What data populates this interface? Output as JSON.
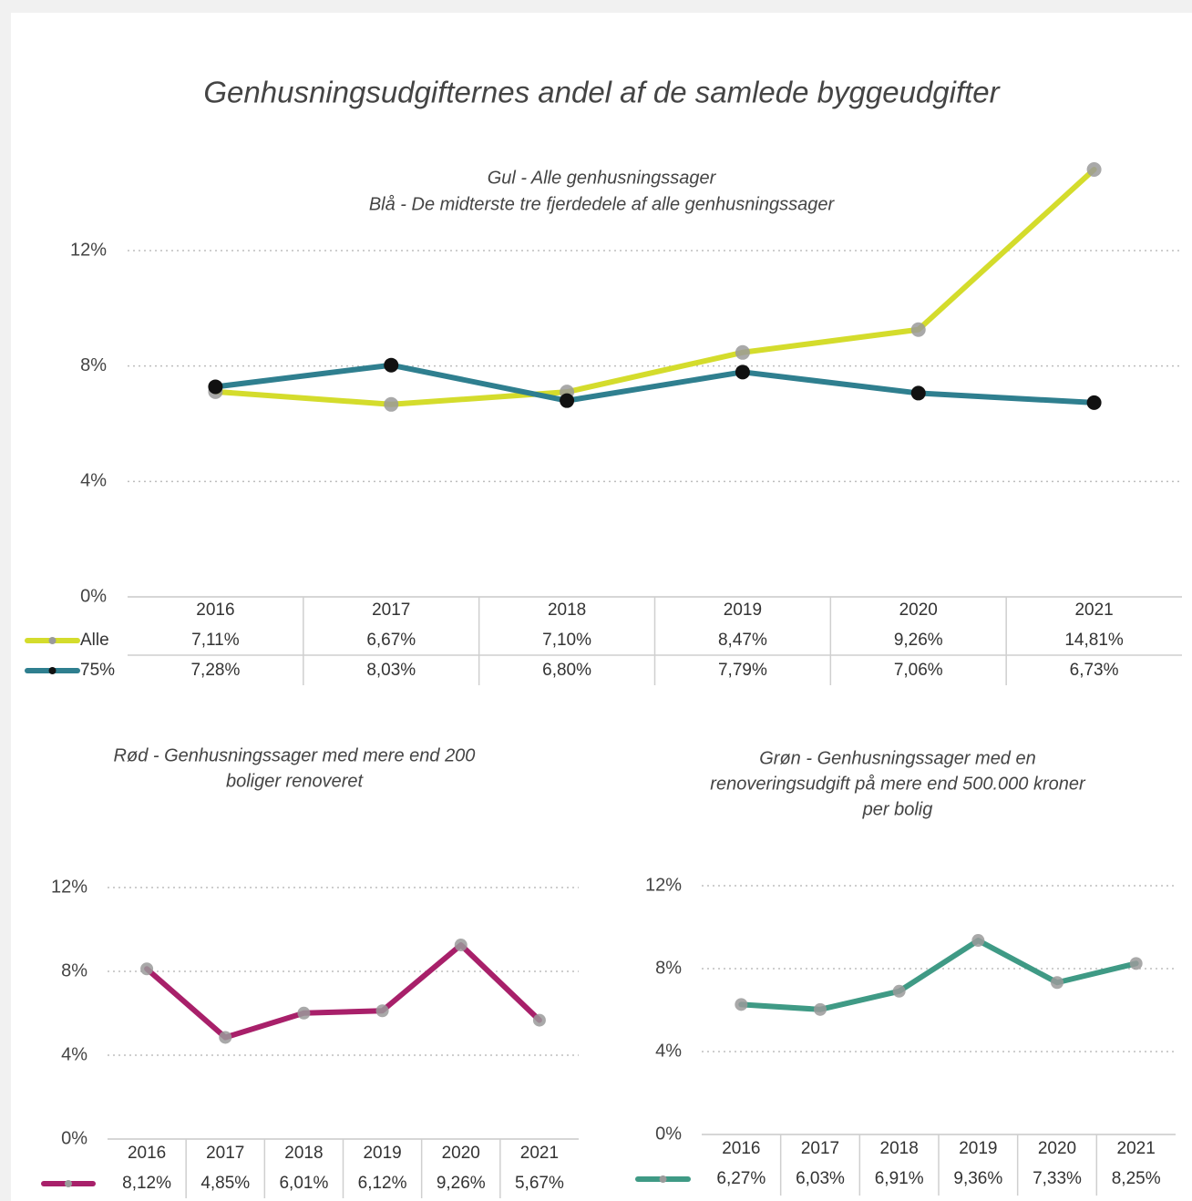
{
  "title": "Genhusningsudgifternes andel af de samlede byggeudgifter",
  "chart_data": [
    {
      "type": "line",
      "title": [
        "Gul - Alle genhusningssager",
        "Blå - De midterste tre fjerdedele af alle genhusningssager"
      ],
      "categories": [
        "2016",
        "2017",
        "2018",
        "2019",
        "2020",
        "2021"
      ],
      "series": [
        {
          "name": "Alle",
          "color": "#d4dc2c",
          "marker_color": "#9a9a9a",
          "values": [
            7.11,
            6.67,
            7.1,
            8.47,
            9.26,
            14.81
          ],
          "value_labels": [
            "7,11%",
            "6,67%",
            "7,10%",
            "8,47%",
            "9,26%",
            "14,81%"
          ]
        },
        {
          "name": "75%",
          "color": "#2f7f8f",
          "marker_color": "#111111",
          "values": [
            7.28,
            8.03,
            6.8,
            7.79,
            7.06,
            6.73
          ],
          "value_labels": [
            "7,28%",
            "8,03%",
            "6,80%",
            "7,79%",
            "7,06%",
            "6,73%"
          ]
        }
      ],
      "ylim": [
        0,
        15
      ],
      "yticks": [
        {
          "value": 0,
          "label": "0%"
        },
        {
          "value": 4,
          "label": "4%"
        },
        {
          "value": 8,
          "label": "8%"
        },
        {
          "value": 12,
          "label": "12%"
        }
      ],
      "grid": true
    },
    {
      "type": "line",
      "title": [
        "Rød - Genhusningssager med mere end 200",
        "boliger renoveret"
      ],
      "categories": [
        "2016",
        "2017",
        "2018",
        "2019",
        "2020",
        "2021"
      ],
      "series": [
        {
          "color": "#a8206a",
          "marker_color": "#9a9a9a",
          "values": [
            8.12,
            4.85,
            6.01,
            6.12,
            9.26,
            5.67
          ],
          "value_labels": [
            "8,12%",
            "4,85%",
            "6,01%",
            "6,12%",
            "9,26%",
            "5,67%"
          ]
        }
      ],
      "ylim": [
        0,
        12
      ],
      "yticks": [
        {
          "value": 0,
          "label": "0%"
        },
        {
          "value": 4,
          "label": "4%"
        },
        {
          "value": 8,
          "label": "8%"
        },
        {
          "value": 12,
          "label": "12%"
        }
      ],
      "grid": true
    },
    {
      "type": "line",
      "title": [
        "Grøn - Genhusningssager med en",
        "renoveringsudgift på mere end 500.000 kroner",
        "per bolig"
      ],
      "categories": [
        "2016",
        "2017",
        "2018",
        "2019",
        "2020",
        "2021"
      ],
      "series": [
        {
          "color": "#3f9a85",
          "marker_color": "#9a9a9a",
          "values": [
            6.27,
            6.03,
            6.91,
            9.36,
            7.33,
            8.25
          ],
          "value_labels": [
            "6,27%",
            "6,03%",
            "6,91%",
            "9,36%",
            "7,33%",
            "8,25%"
          ]
        }
      ],
      "ylim": [
        0,
        12
      ],
      "yticks": [
        {
          "value": 0,
          "label": "0%"
        },
        {
          "value": 4,
          "label": "4%"
        },
        {
          "value": 8,
          "label": "8%"
        },
        {
          "value": 12,
          "label": "12%"
        }
      ],
      "grid": true
    }
  ]
}
